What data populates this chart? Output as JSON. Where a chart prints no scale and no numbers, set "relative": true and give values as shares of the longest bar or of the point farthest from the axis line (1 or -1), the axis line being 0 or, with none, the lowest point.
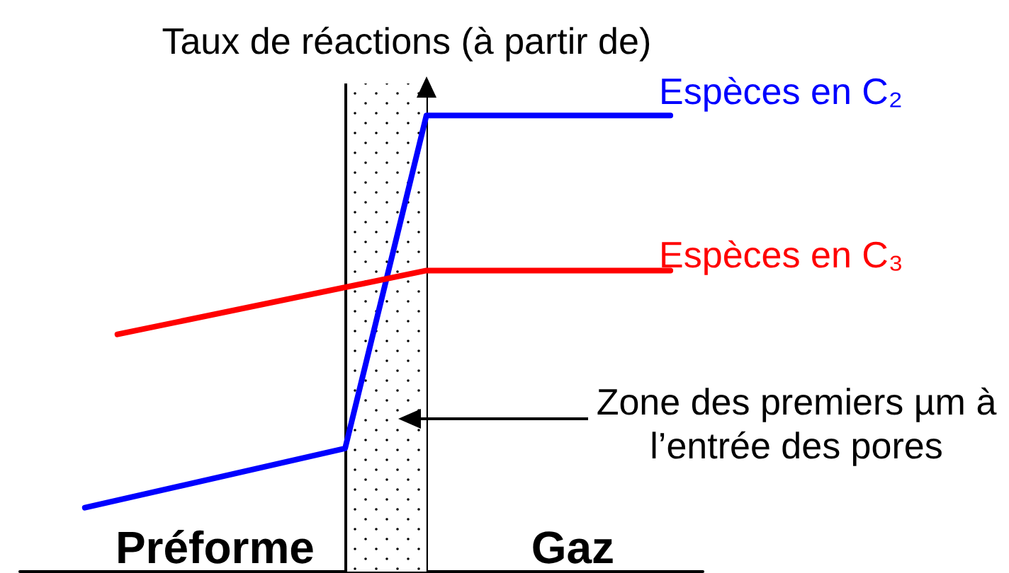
{
  "chart_data": {
    "type": "line",
    "relative": true,
    "ylabel": "Taux de réactions (à partir de)",
    "categories": [
      null,
      null,
      null,
      null,
      null,
      null,
      null,
      null,
      null,
      null,
      null,
      null,
      "Préforme",
      null,
      null,
      null,
      null,
      null,
      null,
      null,
      null,
      null,
      null,
      null,
      null,
      null,
      null,
      null,
      null,
      null,
      null,
      null,
      null,
      null,
      "Gaz",
      null,
      null,
      null,
      null,
      null,
      null,
      null,
      null
    ],
    "series": [
      {
        "name": "Espèces en C₂",
        "color": "#0000ff",
        "values": [
          null,
          null,
          null,
          null,
          0.14,
          null,
          null,
          null,
          null,
          null,
          null,
          null,
          null,
          null,
          null,
          null,
          null,
          null,
          null,
          null,
          0.27,
          null,
          null,
          null,
          null,
          1,
          null,
          null,
          null,
          null,
          null,
          null,
          null,
          null,
          null,
          null,
          null,
          null,
          null,
          null,
          1,
          null,
          null
        ]
      },
      {
        "name": "Espèces en C₃",
        "color": "#ff0000",
        "values": [
          null,
          null,
          null,
          null,
          null,
          null,
          0.52,
          null,
          null,
          null,
          null,
          null,
          null,
          null,
          null,
          null,
          null,
          null,
          null,
          null,
          null,
          null,
          null,
          null,
          null,
          0.66,
          null,
          null,
          null,
          null,
          null,
          null,
          null,
          null,
          null,
          null,
          null,
          null,
          null,
          null,
          0.66,
          null,
          null
        ]
      }
    ],
    "annotations": [
      "Zone des premiers µm à l’entrée des pores"
    ],
    "legend": false,
    "marker": "none",
    "line_style": "solid"
  }
}
